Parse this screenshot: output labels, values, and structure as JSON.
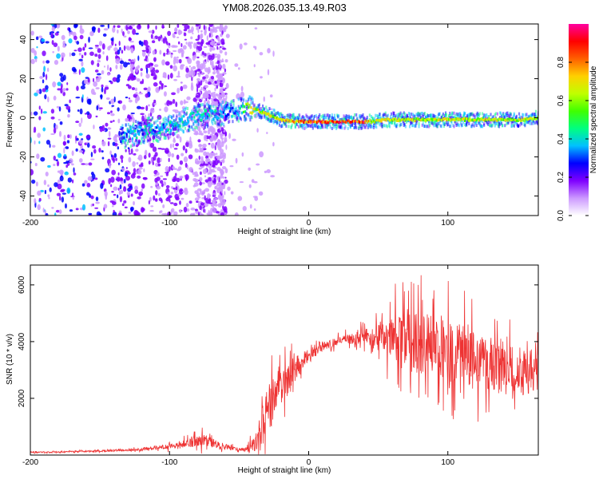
{
  "title": "YM08.2026.035.13.49.R03",
  "chart_data": [
    {
      "type": "heatmap",
      "title": "YM08.2026.035.13.49.R03",
      "xlabel": "Height of straight line (km)",
      "ylabel": "Frequency (Hz)",
      "xlim": [
        -200,
        165
      ],
      "ylim": [
        -50,
        48
      ],
      "xticks": [
        -200,
        -100,
        0,
        100
      ],
      "yticks": [
        -40,
        -20,
        0,
        20,
        40
      ],
      "colorbar": {
        "label": "Normalized spectral amplitude",
        "range": [
          0,
          1
        ],
        "ticks": [
          0.0,
          0.2,
          0.4,
          0.6,
          0.8
        ],
        "tick_labels": [
          "0.0",
          "0.2",
          "0.4",
          "0.6",
          "0.8"
        ],
        "colors": [
          "#ffffff",
          "#cc99ff",
          "#7f00ff",
          "#0000ff",
          "#00c0ff",
          "#00ff80",
          "#40ff00",
          "#c0ff00",
          "#ffd000",
          "#ff6000",
          "#ff0000",
          "#ff00a0"
        ]
      },
      "ridge": {
        "x": [
          -135,
          -125,
          -115,
          -105,
          -95,
          -85,
          -75,
          -65,
          -55,
          -48,
          -43,
          -38,
          -30,
          -20,
          -10,
          0,
          10,
          20,
          30,
          40,
          45,
          55,
          65,
          75,
          85,
          95,
          105,
          115,
          125,
          135,
          145,
          155,
          165
        ],
        "frequency": [
          -10,
          -8,
          -6,
          -6,
          -3,
          0,
          1,
          2,
          3,
          4,
          5,
          4,
          2,
          -1,
          -2,
          -2,
          -2,
          -2,
          -2,
          -2,
          -2,
          -1,
          -1,
          -1,
          -1,
          -1,
          -1,
          -1,
          -1,
          -1,
          -1,
          -1,
          0
        ],
        "amplitude": [
          0.35,
          0.4,
          0.4,
          0.4,
          0.45,
          0.45,
          0.45,
          0.4,
          0.35,
          0.45,
          0.75,
          0.7,
          0.7,
          0.75,
          0.85,
          0.95,
          0.95,
          0.95,
          0.95,
          0.95,
          0.7,
          0.75,
          0.7,
          0.7,
          0.7,
          0.7,
          0.7,
          0.7,
          0.7,
          0.7,
          0.7,
          0.7,
          0.7
        ]
      }
    },
    {
      "type": "line",
      "xlabel": "Height of straight line (km)",
      "ylabel": "SNR (10 * v/v)",
      "xlim": [
        -200,
        165
      ],
      "ylim": [
        0,
        6700
      ],
      "xticks": [
        -200,
        -100,
        0,
        100
      ],
      "yticks": [
        2000,
        4000,
        6000
      ],
      "series": [
        {
          "name": "SNR",
          "color": "#ee3333",
          "x": [
            -200,
            -180,
            -160,
            -140,
            -120,
            -110,
            -100,
            -90,
            -85,
            -80,
            -75,
            -70,
            -65,
            -60,
            -55,
            -50,
            -45,
            -40,
            -35,
            -30,
            -25,
            -20,
            -15,
            -10,
            -5,
            0,
            10,
            20,
            30,
            40,
            50,
            60,
            70,
            80,
            90,
            100,
            110,
            120,
            130,
            140,
            150,
            160,
            165
          ],
          "mean": [
            100,
            110,
            130,
            160,
            200,
            250,
            300,
            400,
            450,
            500,
            550,
            450,
            350,
            300,
            250,
            200,
            200,
            300,
            800,
            1500,
            2000,
            2400,
            2700,
            3000,
            3300,
            3500,
            3800,
            4000,
            4100,
            4200,
            4200,
            4200,
            4200,
            4000,
            3800,
            3700,
            3500,
            3300,
            3100,
            3000,
            2900,
            2900,
            2900
          ],
          "spread": [
            50,
            50,
            60,
            70,
            100,
            150,
            200,
            300,
            400,
            500,
            500,
            400,
            300,
            200,
            150,
            100,
            150,
            600,
            1500,
            2000,
            1800,
            1500,
            1300,
            1000,
            700,
            500,
            400,
            300,
            400,
            600,
            1200,
            1800,
            2200,
            2500,
            2600,
            2500,
            2400,
            2200,
            2000,
            1900,
            1800,
            1800,
            1800
          ]
        }
      ]
    }
  ]
}
